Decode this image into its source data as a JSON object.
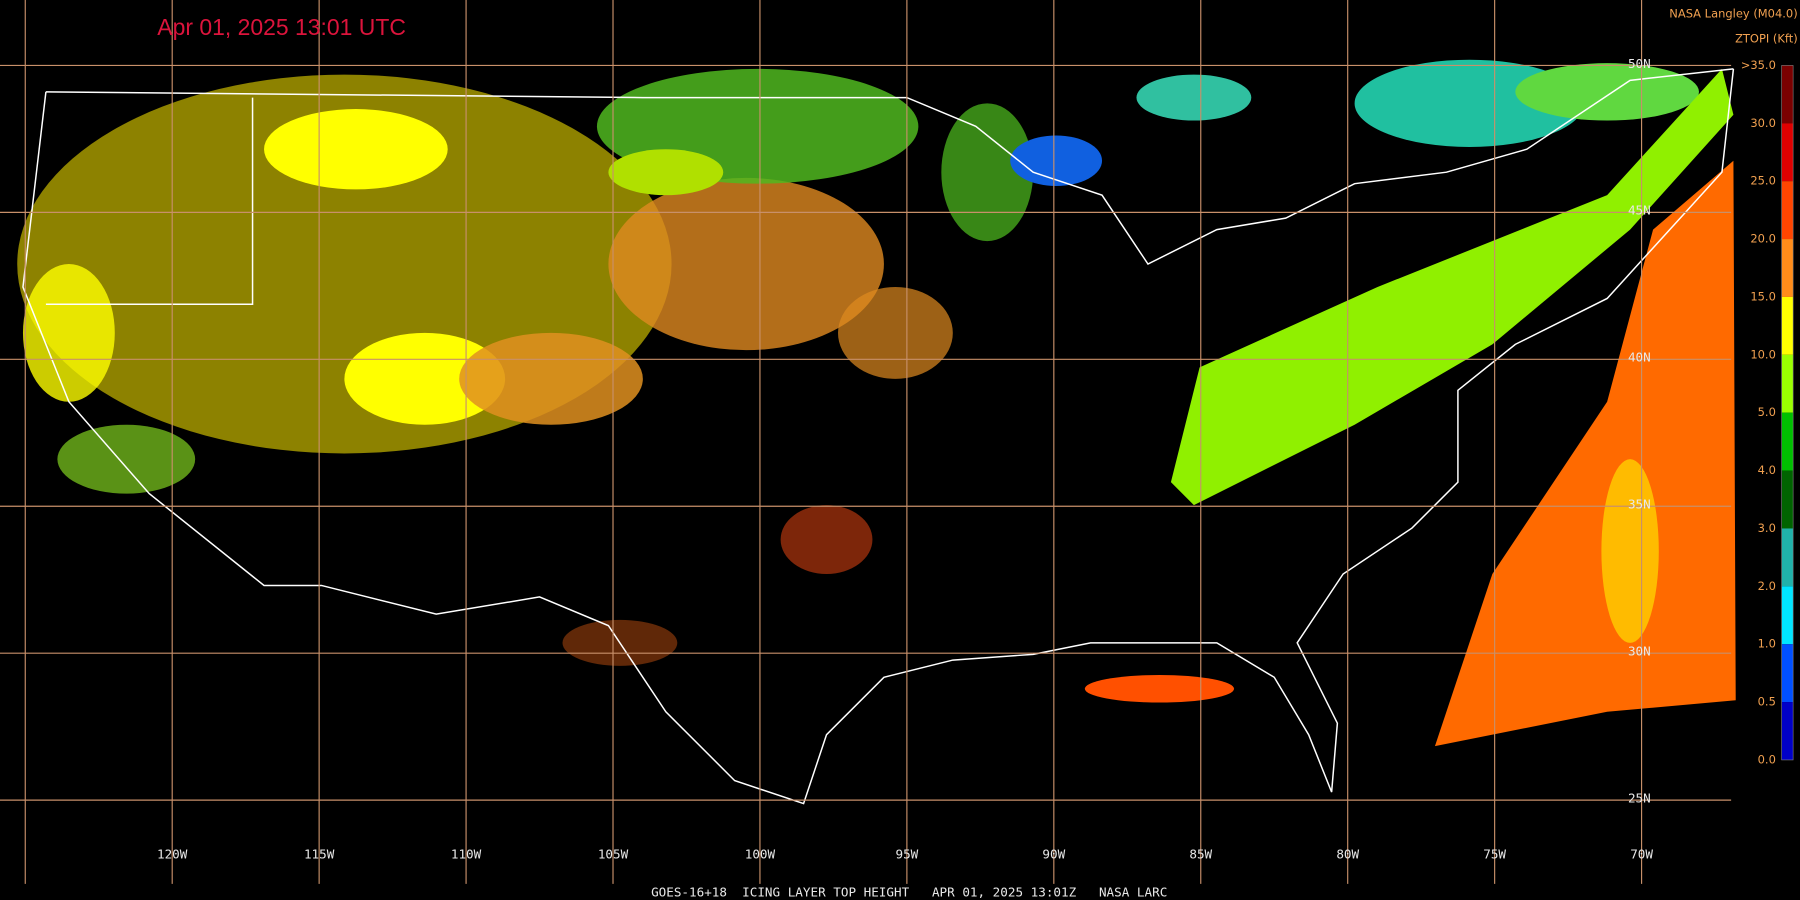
{
  "header": {
    "timestamp": "Apr 01, 2025 13:01 UTC",
    "source": "NASA Langley (M04.0)",
    "product": "ZTOPI (Kft)"
  },
  "legend": {
    "labels": [
      ">35.0",
      "30.0",
      "25.0",
      "20.0",
      "15.0",
      "10.0",
      "5.0",
      "4.0",
      "3.0",
      "2.0",
      "1.0",
      "0.5",
      "0.0"
    ],
    "colors": [
      "#7a0000",
      "#e00000",
      "#ff4500",
      "#ff8c1a",
      "#ffff00",
      "#9aff00",
      "#00c000",
      "#006400",
      "#20b2aa",
      "#00e5ff",
      "#0050ff",
      "#0000c8"
    ]
  },
  "grid": {
    "longitudes": [
      "120W",
      "115W",
      "110W",
      "105W",
      "100W",
      "95W",
      "90W",
      "85W",
      "80W",
      "75W",
      "70W"
    ],
    "latitudes": [
      "50N",
      "45N",
      "40N",
      "35N",
      "30N",
      "25N"
    ]
  },
  "footer": "GOES-16+18  ICING LAYER TOP HEIGHT   APR 01, 2025 13:01Z   NASA LARC"
}
